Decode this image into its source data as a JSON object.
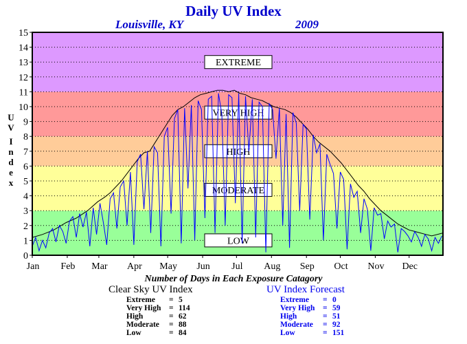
{
  "title": "Daily UV Index",
  "location": "Louisville, KY",
  "year": "2009",
  "summary_heading": "Number of Days in Each Exposure Catagory",
  "clear_sky": {
    "title": "Clear Sky UV Index",
    "rows": [
      {
        "name": "Extreme",
        "value": "5"
      },
      {
        "name": "Very High",
        "value": "114"
      },
      {
        "name": "High",
        "value": "62"
      },
      {
        "name": "Moderate",
        "value": "88"
      },
      {
        "name": "Low",
        "value": "84"
      }
    ]
  },
  "forecast": {
    "title": "UV Index Forecast",
    "rows": [
      {
        "name": "Extreme",
        "value": "0"
      },
      {
        "name": "Very High",
        "value": "59"
      },
      {
        "name": "High",
        "value": "51"
      },
      {
        "name": "Moderate",
        "value": "92"
      },
      {
        "name": "Low",
        "value": "151"
      }
    ]
  },
  "colors": {
    "low": "#99ff99",
    "moderate": "#ffff99",
    "high": "#ffcc99",
    "very_high": "#ff9999",
    "extreme": "#dd99ff",
    "clear_sky_line": "#000000",
    "forecast_line": "#0000ff",
    "title": "#0000cc"
  },
  "chart_data": {
    "type": "line",
    "ylabel": "UV Index",
    "ylim": [
      0,
      15
    ],
    "yticks": [
      "0",
      "1",
      "2",
      "3",
      "4",
      "5",
      "6",
      "7",
      "8",
      "9",
      "10",
      "11",
      "12",
      "13",
      "14",
      "15"
    ],
    "xlim": [
      1,
      365
    ],
    "x_unit": "day of year",
    "months": [
      "Jan",
      "Feb",
      "Mar",
      "Apr",
      "May",
      "Jun",
      "Jul",
      "Aug",
      "Sep",
      "Oct",
      "Nov",
      "Dec"
    ],
    "grid": "dotted",
    "bands": [
      {
        "label": "LOW",
        "from": 0,
        "to": 3,
        "color": "#99ff99"
      },
      {
        "label": "MODERATE",
        "from": 3,
        "to": 6,
        "color": "#ffff99"
      },
      {
        "label": "HIGH",
        "from": 6,
        "to": 8,
        "color": "#ffcc99"
      },
      {
        "label": "VERY HIGH",
        "from": 8,
        "to": 11,
        "color": "#ff9999"
      },
      {
        "label": "EXTREME",
        "from": 11,
        "to": 15,
        "color": "#dd99ff"
      }
    ],
    "series": [
      {
        "name": "Clear Sky UV Index",
        "color": "#000000",
        "x": [
          1,
          10,
          20,
          31,
          40,
          50,
          59,
          65,
          70,
          75,
          80,
          85,
          90,
          95,
          100,
          105,
          110,
          115,
          120,
          125,
          130,
          135,
          140,
          145,
          150,
          155,
          160,
          165,
          170,
          175,
          180,
          185,
          190,
          195,
          200,
          205,
          210,
          215,
          220,
          225,
          230,
          235,
          240,
          245,
          250,
          255,
          260,
          265,
          270,
          275,
          280,
          285,
          290,
          295,
          300,
          305,
          310,
          315,
          320,
          325,
          330,
          335,
          340,
          345,
          350,
          355,
          365
        ],
        "y": [
          1.2,
          1.4,
          1.7,
          2.2,
          2.5,
          3.0,
          3.6,
          3.9,
          4.2,
          4.6,
          5.0,
          5.5,
          6.0,
          6.5,
          6.9,
          7.0,
          7.6,
          8.2,
          8.8,
          9.4,
          9.8,
          10.0,
          10.3,
          10.6,
          10.8,
          10.9,
          11.0,
          11.1,
          11.1,
          11.0,
          11.1,
          10.9,
          10.8,
          10.6,
          10.5,
          10.4,
          10.2,
          10.0,
          9.9,
          9.8,
          9.6,
          9.3,
          8.9,
          8.5,
          8.0,
          7.6,
          7.3,
          7.0,
          6.6,
          6.2,
          5.7,
          5.2,
          4.7,
          4.3,
          3.8,
          3.4,
          3.0,
          2.7,
          2.4,
          2.1,
          1.9,
          1.7,
          1.6,
          1.5,
          1.4,
          1.3,
          1.5
        ]
      },
      {
        "name": "UV Index Forecast",
        "color": "#0000ff",
        "x": [
          1,
          4,
          7,
          10,
          13,
          16,
          19,
          22,
          25,
          28,
          31,
          34,
          37,
          40,
          43,
          46,
          49,
          52,
          55,
          58,
          61,
          64,
          67,
          70,
          73,
          76,
          79,
          82,
          85,
          88,
          91,
          94,
          97,
          100,
          103,
          106,
          109,
          112,
          115,
          118,
          121,
          124,
          127,
          130,
          133,
          136,
          139,
          142,
          145,
          148,
          151,
          154,
          157,
          160,
          163,
          166,
          169,
          172,
          175,
          178,
          181,
          184,
          187,
          190,
          193,
          196,
          199,
          202,
          205,
          208,
          211,
          214,
          217,
          220,
          223,
          226,
          229,
          232,
          235,
          238,
          241,
          244,
          247,
          250,
          253,
          256,
          259,
          262,
          265,
          268,
          271,
          274,
          277,
          280,
          283,
          286,
          289,
          292,
          295,
          298,
          301,
          304,
          307,
          310,
          313,
          316,
          319,
          322,
          325,
          328,
          331,
          334,
          337,
          340,
          343,
          346,
          349,
          352,
          355,
          358,
          361,
          364
        ],
        "y": [
          0.6,
          1.2,
          0.3,
          1.0,
          0.5,
          1.5,
          1.8,
          0.9,
          2.0,
          1.6,
          0.8,
          2.3,
          2.6,
          1.2,
          2.8,
          1.9,
          2.9,
          0.6,
          3.2,
          1.4,
          3.5,
          2.2,
          0.7,
          3.8,
          4.2,
          1.8,
          4.6,
          5.0,
          2.0,
          5.6,
          0.7,
          6.3,
          6.8,
          3.1,
          7.0,
          1.5,
          7.3,
          6.9,
          0.6,
          8.0,
          8.6,
          2.8,
          9.2,
          9.8,
          0.8,
          9.9,
          4.5,
          10.1,
          1.0,
          10.4,
          9.8,
          2.5,
          10.5,
          10.7,
          1.5,
          10.9,
          9.5,
          2.0,
          10.8,
          10.6,
          3.5,
          10.9,
          0.8,
          10.7,
          7.0,
          10.5,
          1.2,
          10.3,
          10.0,
          0.2,
          10.2,
          9.8,
          6.5,
          9.9,
          2.0,
          9.5,
          0.5,
          9.6,
          8.9,
          3.0,
          8.8,
          8.5,
          2.4,
          8.1,
          6.9,
          7.5,
          1.0,
          6.8,
          6.1,
          5.5,
          1.8,
          5.6,
          5.1,
          0.4,
          4.8,
          3.9,
          4.3,
          1.5,
          3.8,
          3.1,
          0.3,
          3.2,
          2.7,
          2.8,
          1.1,
          2.3,
          1.9,
          2.1,
          0.2,
          1.8,
          1.6,
          1.3,
          0.9,
          1.6,
          1.2,
          0.6,
          1.4,
          1.1,
          0.3,
          1.2,
          0.8,
          1.3
        ]
      }
    ]
  }
}
